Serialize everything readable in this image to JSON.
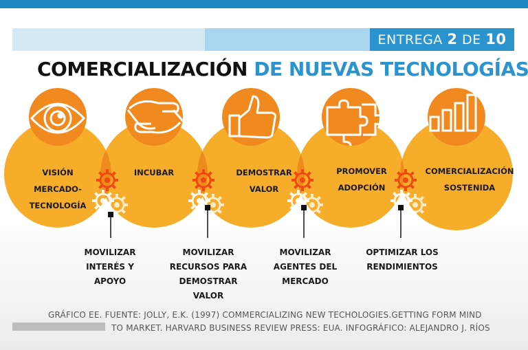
{
  "header": {
    "entrega_prefix": "ENTREGA",
    "entrega_num": "2",
    "entrega_de": "DE",
    "entrega_total": "10",
    "title_dark": "COMERCIALIZACIÓN",
    "title_blue": "DE NUEVAS TECNOLOGÍAS"
  },
  "stages": [
    {
      "label": "VISIÓN\nMERCADO-\nTECNOLOGÍA",
      "icon": "eye-icon"
    },
    {
      "label": "INCUBAR",
      "icon": "handshake-icon"
    },
    {
      "label": "DEMOSTRAR\nVALOR",
      "icon": "thumbs-up-icon"
    },
    {
      "label": "PROMOVER\nADOPCIÓN",
      "icon": "puzzle-icon"
    },
    {
      "label": "COMERCIALIZACIÓN\nSOSTENIDA",
      "icon": "bar-chart-icon"
    }
  ],
  "actions": [
    {
      "label": "MOVILIZAR\nINTERÉS Y\nAPOYO"
    },
    {
      "label": "MOVILIZAR\nRECURSOS PARA\nDEMOSTRAR\nVALOR"
    },
    {
      "label": "MOVILIZAR\nAGENTES DEL\nMERCADO"
    },
    {
      "label": "OPTIMIZAR LOS\nRENDIMIENTOS"
    }
  ],
  "footer": {
    "line1": "GRÁFICO EE. FUENTE: JOLLY, E.K. (1997) COMMERCIALIZING NEW TECHOLOGIES.GETTING FORM MIND",
    "line2": "TO MARKET. HARVARD BUSINESS REVIEW PRESS: EUA. INFOGRÁFICO: ALEJANDRO J. RÍOS"
  },
  "colors": {
    "topbar": "#1f86c4",
    "accent_blue": "#2b94cf",
    "circle_orange": "#f6ad2a",
    "icon_orange": "#f07d1c",
    "overlap_orange": "#ee8b1d"
  }
}
